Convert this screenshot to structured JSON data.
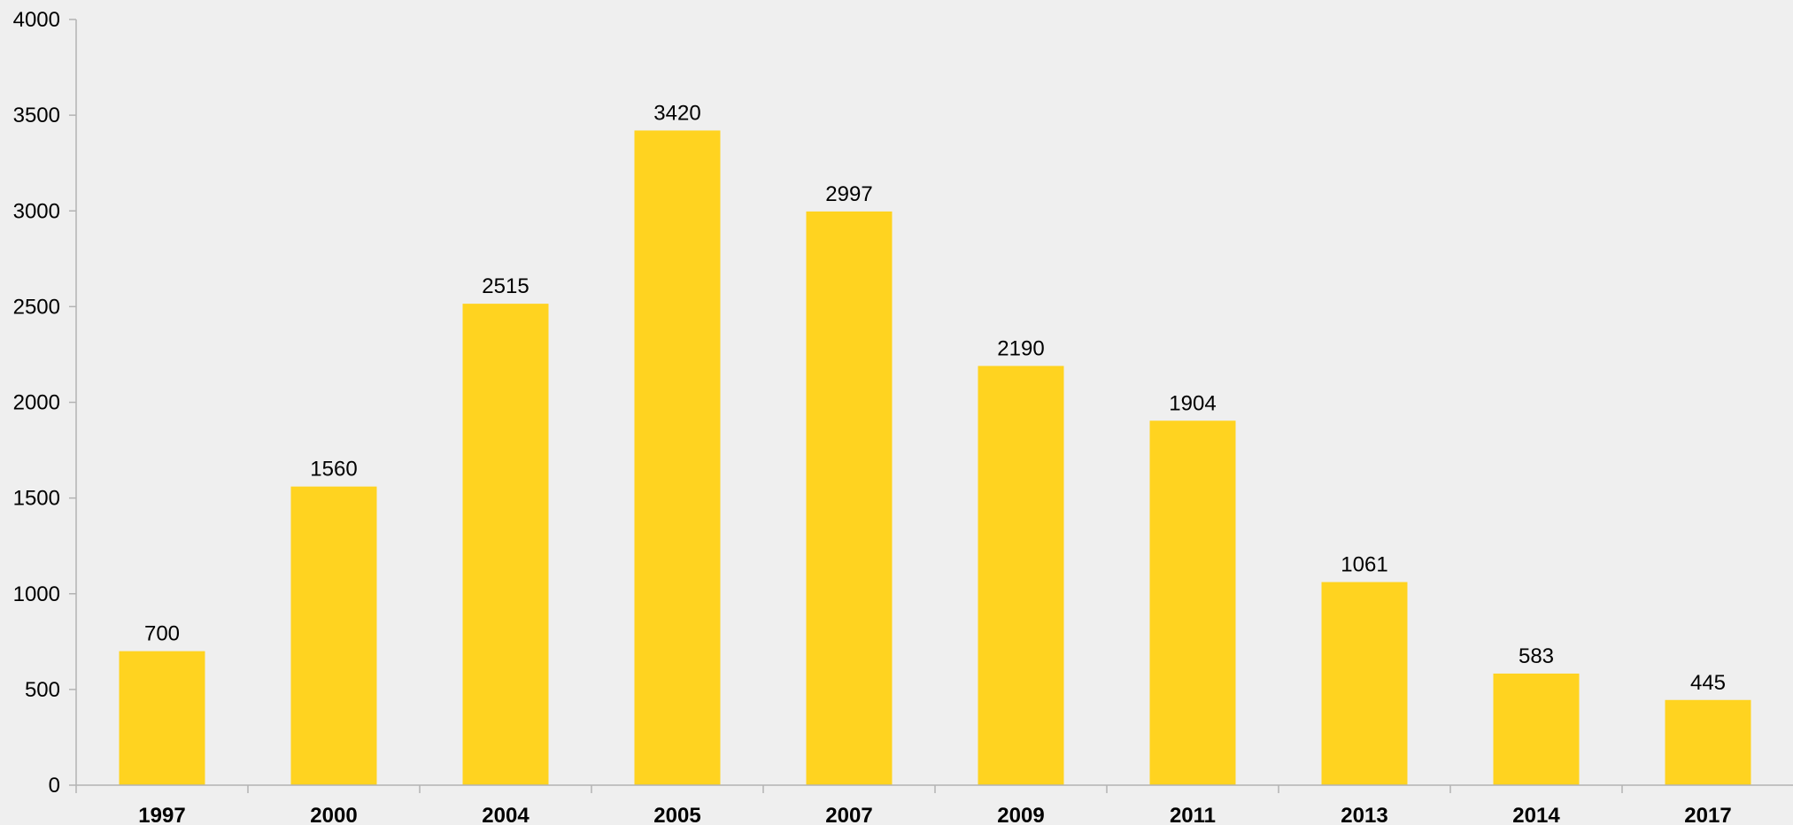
{
  "colors": {
    "background": "#efefef",
    "bar": "#ffd320",
    "axis": "#b3b3b3",
    "text": "#000000"
  },
  "chart_data": {
    "type": "bar",
    "categories": [
      "1997",
      "2000",
      "2004",
      "2005",
      "2007",
      "2009",
      "2011",
      "2013",
      "2014",
      "2017"
    ],
    "values": [
      700,
      1560,
      2515,
      3420,
      2997,
      2190,
      1904,
      1061,
      583,
      445
    ],
    "data_labels": [
      "700",
      "1560",
      "2515",
      "3420",
      "2997",
      "2190",
      "1904",
      "1061",
      "583",
      "445"
    ],
    "y_ticks": [
      "0",
      "500",
      "1000",
      "1500",
      "2000",
      "2500",
      "3000",
      "3500",
      "4000"
    ],
    "ylim": [
      0,
      4000
    ],
    "grid": false,
    "legend": "none"
  }
}
